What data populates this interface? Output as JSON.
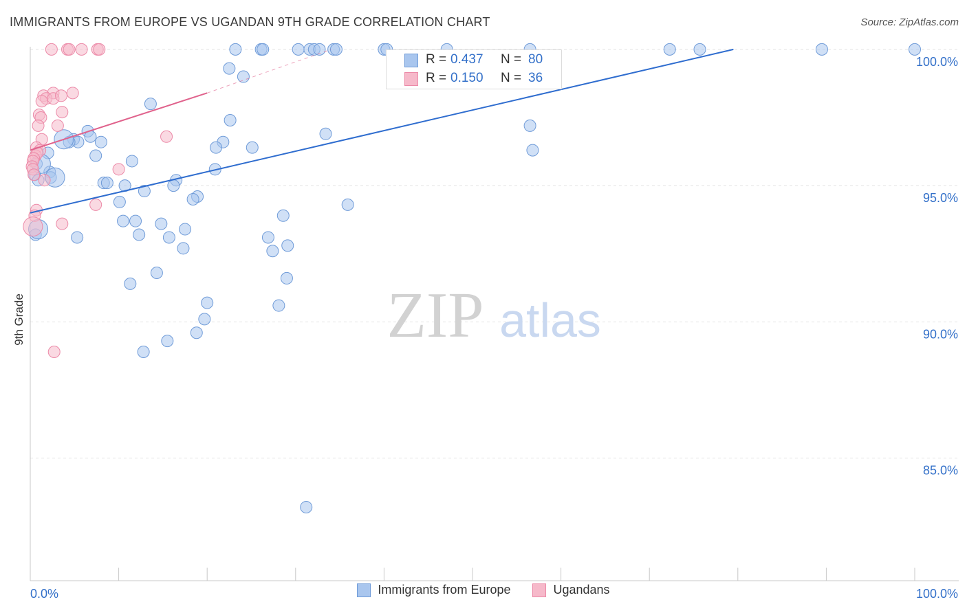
{
  "title": "IMMIGRANTS FROM EUROPE VS UGANDAN 9TH GRADE CORRELATION CHART",
  "source": "Source: ZipAtlas.com",
  "watermark": {
    "part1": "ZIP",
    "part2": "atlas"
  },
  "colors": {
    "blue_fill": "#a9c6ee",
    "blue_stroke": "#6f9bd8",
    "blue_line": "#2f6dcf",
    "pink_fill": "#f6b9ca",
    "pink_stroke": "#ec8aa8",
    "pink_line": "#e0628c",
    "tick_label": "#3370c9",
    "grid": "#e2e2e2"
  },
  "stats": {
    "blue": {
      "r_label": "R =",
      "r_value": "0.437",
      "n_label": "N =",
      "n_value": "80"
    },
    "pink": {
      "r_label": "R =",
      "r_value": "0.150",
      "n_label": "N =",
      "n_value": "36"
    }
  },
  "legend": {
    "blue_label": "Immigrants from Europe",
    "pink_label": "Ugandans"
  },
  "chart_data": {
    "type": "scatter",
    "title": "IMMIGRANTS FROM EUROPE VS UGANDAN 9TH GRADE CORRELATION CHART",
    "xlabel": "",
    "ylabel": "9th Grade",
    "xlim": [
      0,
      100
    ],
    "ylim": [
      80.5,
      100.3
    ],
    "x_tick_labels": [
      {
        "value": 0,
        "label": "0.0%"
      },
      {
        "value": 100,
        "label": "100.0%"
      }
    ],
    "y_tick_labels": [
      {
        "value": 100,
        "label": "100.0%"
      },
      {
        "value": 95,
        "label": "95.0%"
      },
      {
        "value": 90,
        "label": "90.0%"
      },
      {
        "value": 85,
        "label": "85.0%"
      }
    ],
    "x_minor_ticks": [
      0,
      10,
      20,
      30,
      40,
      50,
      60,
      70,
      80,
      90,
      100
    ],
    "grid": true,
    "series": [
      {
        "name": "Immigrants from Europe",
        "color": "blue",
        "trend": {
          "x1": 0,
          "y1": 94.0,
          "x2": 79.5,
          "y2": 100.0,
          "style": "solid"
        },
        "points": [
          [
            23.2,
            100
          ],
          [
            26.1,
            100
          ],
          [
            26.3,
            100
          ],
          [
            30.3,
            100
          ],
          [
            31.6,
            100
          ],
          [
            32.1,
            100
          ],
          [
            32.7,
            100
          ],
          [
            34.3,
            100
          ],
          [
            34.6,
            100
          ],
          [
            40.0,
            100
          ],
          [
            40.3,
            100
          ],
          [
            47.1,
            100
          ],
          [
            56.5,
            100
          ],
          [
            72.3,
            100
          ],
          [
            75.7,
            100
          ],
          [
            89.5,
            100
          ],
          [
            100.0,
            100
          ],
          [
            22.5,
            99.3
          ],
          [
            24.1,
            99.0
          ],
          [
            13.6,
            98.0
          ],
          [
            22.6,
            97.4
          ],
          [
            56.5,
            97.2
          ],
          [
            6.5,
            97.0
          ],
          [
            33.4,
            96.9
          ],
          [
            6.8,
            96.8
          ],
          [
            4.9,
            96.7
          ],
          [
            5.4,
            96.6
          ],
          [
            4.4,
            96.6
          ],
          [
            8.0,
            96.6
          ],
          [
            21.8,
            96.6
          ],
          [
            21.0,
            96.4
          ],
          [
            25.1,
            96.4
          ],
          [
            2.0,
            96.2
          ],
          [
            7.4,
            96.1
          ],
          [
            56.8,
            96.3
          ],
          [
            11.5,
            95.9
          ],
          [
            0.7,
            95.8
          ],
          [
            20.9,
            95.6
          ],
          [
            2.2,
            95.5
          ],
          [
            0.5,
            95.4
          ],
          [
            2.3,
            95.3
          ],
          [
            0.9,
            95.2
          ],
          [
            8.3,
            95.1
          ],
          [
            8.7,
            95.1
          ],
          [
            16.5,
            95.2
          ],
          [
            10.7,
            95.0
          ],
          [
            16.2,
            95.0
          ],
          [
            12.9,
            94.8
          ],
          [
            18.9,
            94.6
          ],
          [
            18.4,
            94.5
          ],
          [
            10.1,
            94.4
          ],
          [
            35.9,
            94.3
          ],
          [
            28.6,
            93.9
          ],
          [
            10.5,
            93.7
          ],
          [
            11.9,
            93.7
          ],
          [
            14.8,
            93.6
          ],
          [
            17.5,
            93.4
          ],
          [
            0.6,
            93.2
          ],
          [
            12.3,
            93.2
          ],
          [
            5.3,
            93.1
          ],
          [
            15.7,
            93.1
          ],
          [
            26.9,
            93.1
          ],
          [
            17.3,
            92.7
          ],
          [
            29.1,
            92.8
          ],
          [
            27.4,
            92.6
          ],
          [
            14.3,
            91.8
          ],
          [
            29.0,
            91.6
          ],
          [
            11.3,
            91.4
          ],
          [
            20.0,
            90.7
          ],
          [
            28.1,
            90.6
          ],
          [
            19.7,
            90.1
          ],
          [
            18.8,
            89.6
          ],
          [
            15.5,
            89.3
          ],
          [
            12.8,
            88.9
          ],
          [
            31.2,
            83.2
          ]
        ],
        "large_points": [
          [
            1.2,
            95.8
          ],
          [
            0.9,
            93.4
          ],
          [
            3.8,
            96.7
          ],
          [
            2.8,
            95.3
          ]
        ]
      },
      {
        "name": "Ugandans",
        "color": "pink",
        "trend": {
          "x1": 0,
          "y1": 96.3,
          "x2": 20.0,
          "y2": 98.4,
          "style": "solid",
          "dashed_ext": {
            "x2": 34.0,
            "y2": 100.0
          }
        },
        "points": [
          [
            2.4,
            100
          ],
          [
            4.2,
            100
          ],
          [
            4.4,
            100
          ],
          [
            5.8,
            100
          ],
          [
            7.6,
            100
          ],
          [
            7.8,
            100
          ],
          [
            2.6,
            98.4
          ],
          [
            1.5,
            98.3
          ],
          [
            1.8,
            98.2
          ],
          [
            2.6,
            98.2
          ],
          [
            4.8,
            98.4
          ],
          [
            3.5,
            98.3
          ],
          [
            1.3,
            98.1
          ],
          [
            3.6,
            97.7
          ],
          [
            1.0,
            97.6
          ],
          [
            1.2,
            97.5
          ],
          [
            3.1,
            97.2
          ],
          [
            0.9,
            97.2
          ],
          [
            15.4,
            96.8
          ],
          [
            1.3,
            96.7
          ],
          [
            0.7,
            96.4
          ],
          [
            1.1,
            96.3
          ],
          [
            0.6,
            96.1
          ],
          [
            0.8,
            96.2
          ],
          [
            0.4,
            96.0
          ],
          [
            0.3,
            95.9
          ],
          [
            0.2,
            95.7
          ],
          [
            0.3,
            95.6
          ],
          [
            10.0,
            95.6
          ],
          [
            0.4,
            95.4
          ],
          [
            1.6,
            95.2
          ],
          [
            7.4,
            94.3
          ],
          [
            0.7,
            94.1
          ],
          [
            0.5,
            93.9
          ],
          [
            3.6,
            93.6
          ],
          [
            2.7,
            88.9
          ]
        ],
        "large_points": [
          [
            0.3,
            93.5
          ]
        ]
      }
    ]
  }
}
